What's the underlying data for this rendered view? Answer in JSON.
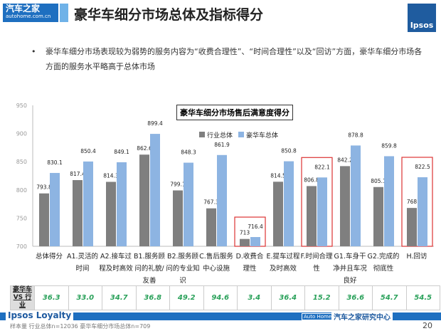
{
  "header": {
    "logo_cn": "汽车之家",
    "logo_en": "autohome.com.cn",
    "title": "豪华车细分市场总体及指标得分",
    "brand": "Ipsos"
  },
  "bullet": "豪华车细分市场表现较为弱势的服务内容为“收费合理性”、“时间合理性”以及“回访”方面，豪华车细分市场各方面的服务水平略高于总体市场",
  "chart_data": {
    "type": "bar",
    "title": "豪华车细分市场售后满意度得分",
    "categories": [
      "总体得分",
      "A1.灵活的时间",
      "A2.接车过程及时高效",
      "B1.服务顾问的礼貌/友善",
      "B2.服务顾问的专业知识",
      "C.售后服务中心设施",
      "D.收费合理性",
      "E.提车过程及时高效",
      "F.时间合理性",
      "G1.车身干净并且车况良好",
      "G2.完成的彻底性",
      "H.回访"
    ],
    "series": [
      {
        "name": "行业总体",
        "color": "#7f7f7f",
        "values": [
          793.8,
          817.4,
          814.3,
          862.6,
          799.1,
          767.3,
          713.0,
          814.5,
          806.8,
          842.2,
          805.1,
          768.0
        ]
      },
      {
        "name": "豪华车总体",
        "color": "#8db4e2",
        "values": [
          830.1,
          850.4,
          849.1,
          899.4,
          848.3,
          861.9,
          716.4,
          850.8,
          822.1,
          878.8,
          859.8,
          822.5
        ]
      }
    ],
    "ylim": [
      700,
      950
    ],
    "yticks": [
      "700",
      "750",
      "800",
      "850",
      "900",
      "950"
    ],
    "highlighted": [
      "D.收费合理性",
      "F.时间合理性",
      "H.回访"
    ],
    "legend": "top-center"
  },
  "diff_table": {
    "header": "豪华车 VS 行业",
    "values": [
      "36.3",
      "33.0",
      "34.7",
      "36.8",
      "49.2",
      "94.6",
      "3.4",
      "36.4",
      "15.2",
      "36.6",
      "54.7",
      "54.5"
    ]
  },
  "footer": {
    "left": "Ipsos Loyalty",
    "badge": "Auto Home",
    "right": "汽车之家研究中心",
    "sample": "样本量 行业总体n=12036 豪华车细分市场总体n=709",
    "page": "20"
  }
}
